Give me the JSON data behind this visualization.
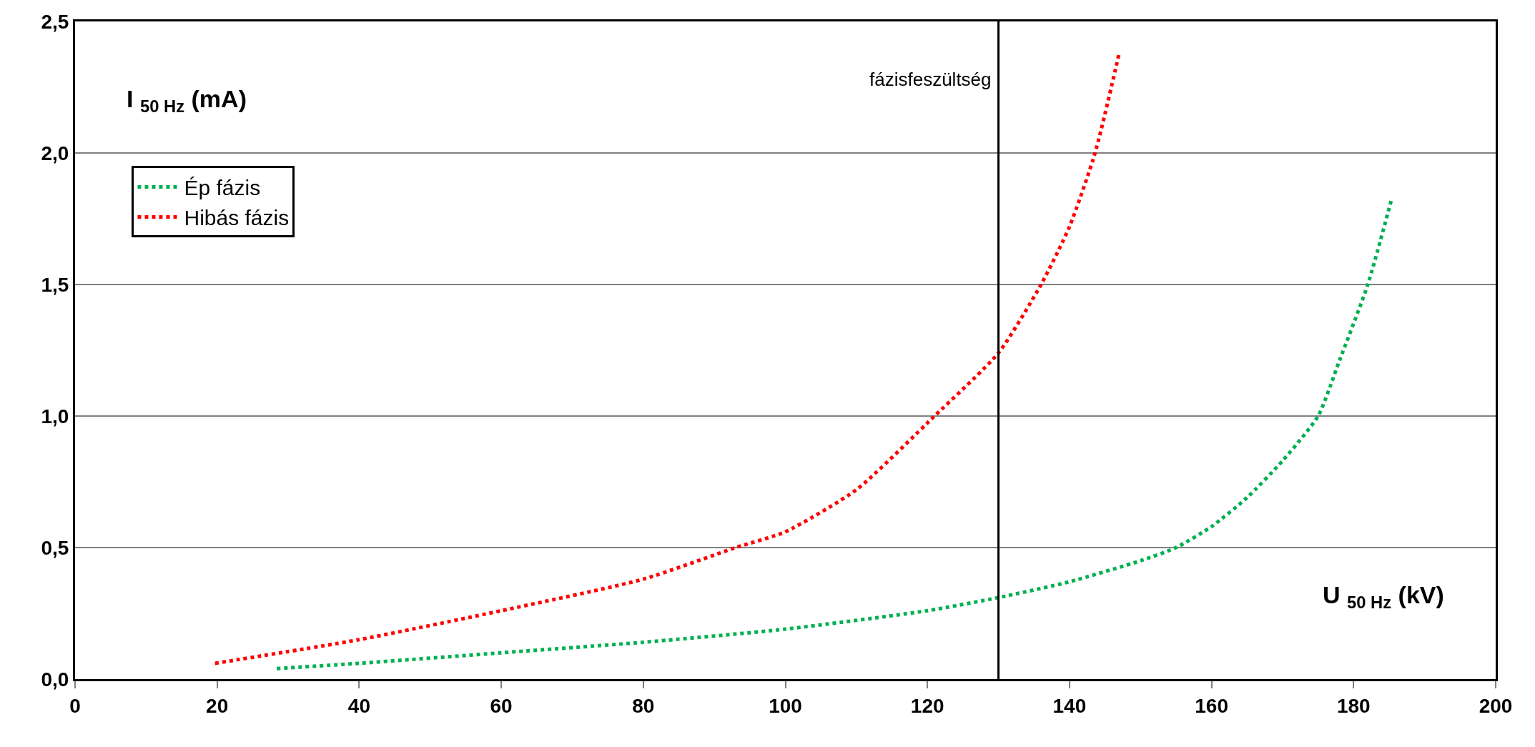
{
  "chart_data": {
    "type": "line",
    "xlabel": "U $_{50 Hz}$ (kV)",
    "ylabel": "I $_{50 Hz}$ (mA)",
    "xlim": [
      0,
      200
    ],
    "xticks": [
      0,
      20,
      40,
      60,
      80,
      100,
      120,
      140,
      160,
      180,
      200
    ],
    "ylim": [
      0,
      2.5
    ],
    "yticks": [
      {
        "value": 0,
        "label": "0,0"
      },
      {
        "value": 0.5,
        "label": "0,5"
      },
      {
        "value": 1.0,
        "label": "1,0"
      },
      {
        "value": 1.5,
        "label": "1,5"
      },
      {
        "value": 2.0,
        "label": "2,0"
      },
      {
        "value": 2.5,
        "label": "2,5"
      }
    ],
    "grid": "y",
    "legend": "top left",
    "marker": "none",
    "line_style": "dotted",
    "series": [
      {
        "name": "Ép fázis",
        "color": "#00b050",
        "x": [
          28.4,
          40,
          60,
          80,
          100,
          120,
          130,
          140,
          150,
          155,
          160,
          165,
          170,
          175,
          178,
          182,
          185.4
        ],
        "values": [
          0.04,
          0.06,
          0.1,
          0.14,
          0.19,
          0.26,
          0.31,
          0.37,
          0.45,
          0.5,
          0.58,
          0.69,
          0.83,
          1.0,
          1.21,
          1.5,
          1.83
        ]
      },
      {
        "name": "Hibás fázis",
        "color": "#ff0000",
        "x": [
          19.7,
          40,
          60,
          80,
          93,
          100,
          110,
          121,
          130,
          136,
          140,
          143.6,
          147
        ],
        "values": [
          0.06,
          0.15,
          0.26,
          0.38,
          0.5,
          0.56,
          0.72,
          1.0,
          1.24,
          1.5,
          1.72,
          2.0,
          2.38
        ]
      }
    ],
    "ref_lines": [
      {
        "axis": "x",
        "value": 130,
        "label": "fázisfeszültség",
        "color": "#000000",
        "line_style": "solid"
      }
    ]
  }
}
